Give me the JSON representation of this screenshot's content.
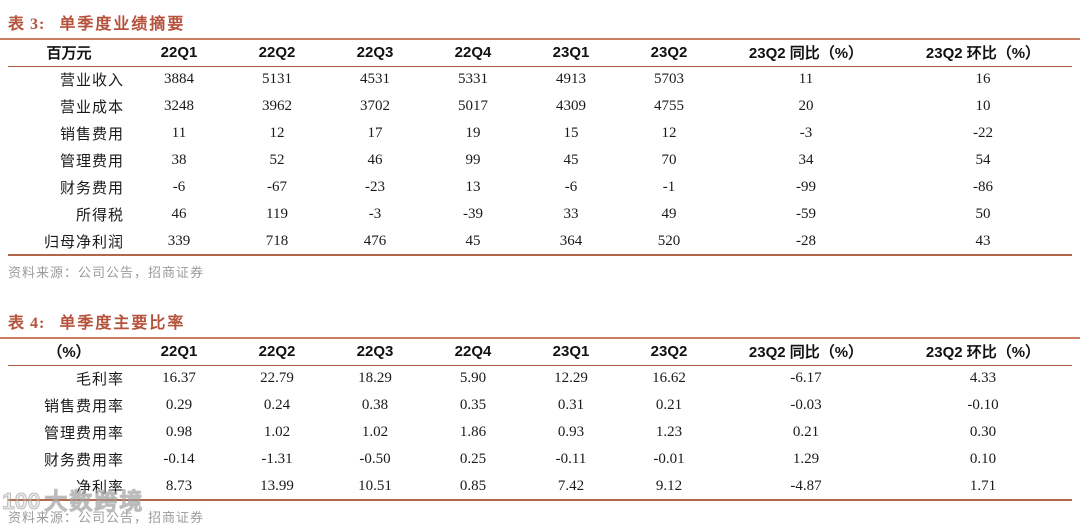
{
  "table3": {
    "title_label": "表 3:",
    "title_text": "单季度业绩摘要",
    "columns": [
      "百万元",
      "22Q1",
      "22Q2",
      "22Q3",
      "22Q4",
      "23Q1",
      "23Q2",
      "23Q2 同比（%）",
      "23Q2 环比（%）"
    ],
    "rows": [
      {
        "label": "营业收入",
        "values": [
          "3884",
          "5131",
          "4531",
          "5331",
          "4913",
          "5703",
          "11",
          "16"
        ]
      },
      {
        "label": "营业成本",
        "values": [
          "3248",
          "3962",
          "3702",
          "5017",
          "4309",
          "4755",
          "20",
          "10"
        ]
      },
      {
        "label": "销售费用",
        "values": [
          "11",
          "12",
          "17",
          "19",
          "15",
          "12",
          "-3",
          "-22"
        ]
      },
      {
        "label": "管理费用",
        "values": [
          "38",
          "52",
          "46",
          "99",
          "45",
          "70",
          "34",
          "54"
        ]
      },
      {
        "label": "财务费用",
        "values": [
          "-6",
          "-67",
          "-23",
          "13",
          "-6",
          "-1",
          "-99",
          "-86"
        ]
      },
      {
        "label": "所得税",
        "values": [
          "46",
          "119",
          "-3",
          "-39",
          "33",
          "49",
          "-59",
          "50"
        ]
      },
      {
        "label": "归母净利润",
        "values": [
          "339",
          "718",
          "476",
          "45",
          "364",
          "520",
          "-28",
          "43"
        ]
      }
    ],
    "source": "资料来源：公司公告，招商证券"
  },
  "table4": {
    "title_label": "表 4:",
    "title_text": "单季度主要比率",
    "columns": [
      "（%）",
      "22Q1",
      "22Q2",
      "22Q3",
      "22Q4",
      "23Q1",
      "23Q2",
      "23Q2 同比（%）",
      "23Q2 环比（%）"
    ],
    "rows": [
      {
        "label": "毛利率",
        "values": [
          "16.37",
          "22.79",
          "18.29",
          "5.90",
          "12.29",
          "16.62",
          "-6.17",
          "4.33"
        ]
      },
      {
        "label": "销售费用率",
        "values": [
          "0.29",
          "0.24",
          "0.38",
          "0.35",
          "0.31",
          "0.21",
          "-0.03",
          "-0.10"
        ]
      },
      {
        "label": "管理费用率",
        "values": [
          "0.98",
          "1.02",
          "1.02",
          "1.86",
          "0.93",
          "1.23",
          "0.21",
          "0.30"
        ]
      },
      {
        "label": "财务费用率",
        "values": [
          "-0.14",
          "-1.31",
          "-0.50",
          "0.25",
          "-0.11",
          "-0.01",
          "1.29",
          "0.10"
        ]
      },
      {
        "label": "净利率",
        "values": [
          "8.73",
          "13.99",
          "10.51",
          "0.85",
          "7.42",
          "9.12",
          "-4.87",
          "1.71"
        ]
      }
    ],
    "source": "资料来源：公司公告，招商证券"
  },
  "watermark": {
    "logo": "100",
    "text": "大数跨境"
  },
  "colors": {
    "title": "#b5523c",
    "title_rule": "#c87e60",
    "header_rule": "#a65a40",
    "table_bottom_rule": "#b4664a",
    "source_text": "#9b9b9b"
  }
}
